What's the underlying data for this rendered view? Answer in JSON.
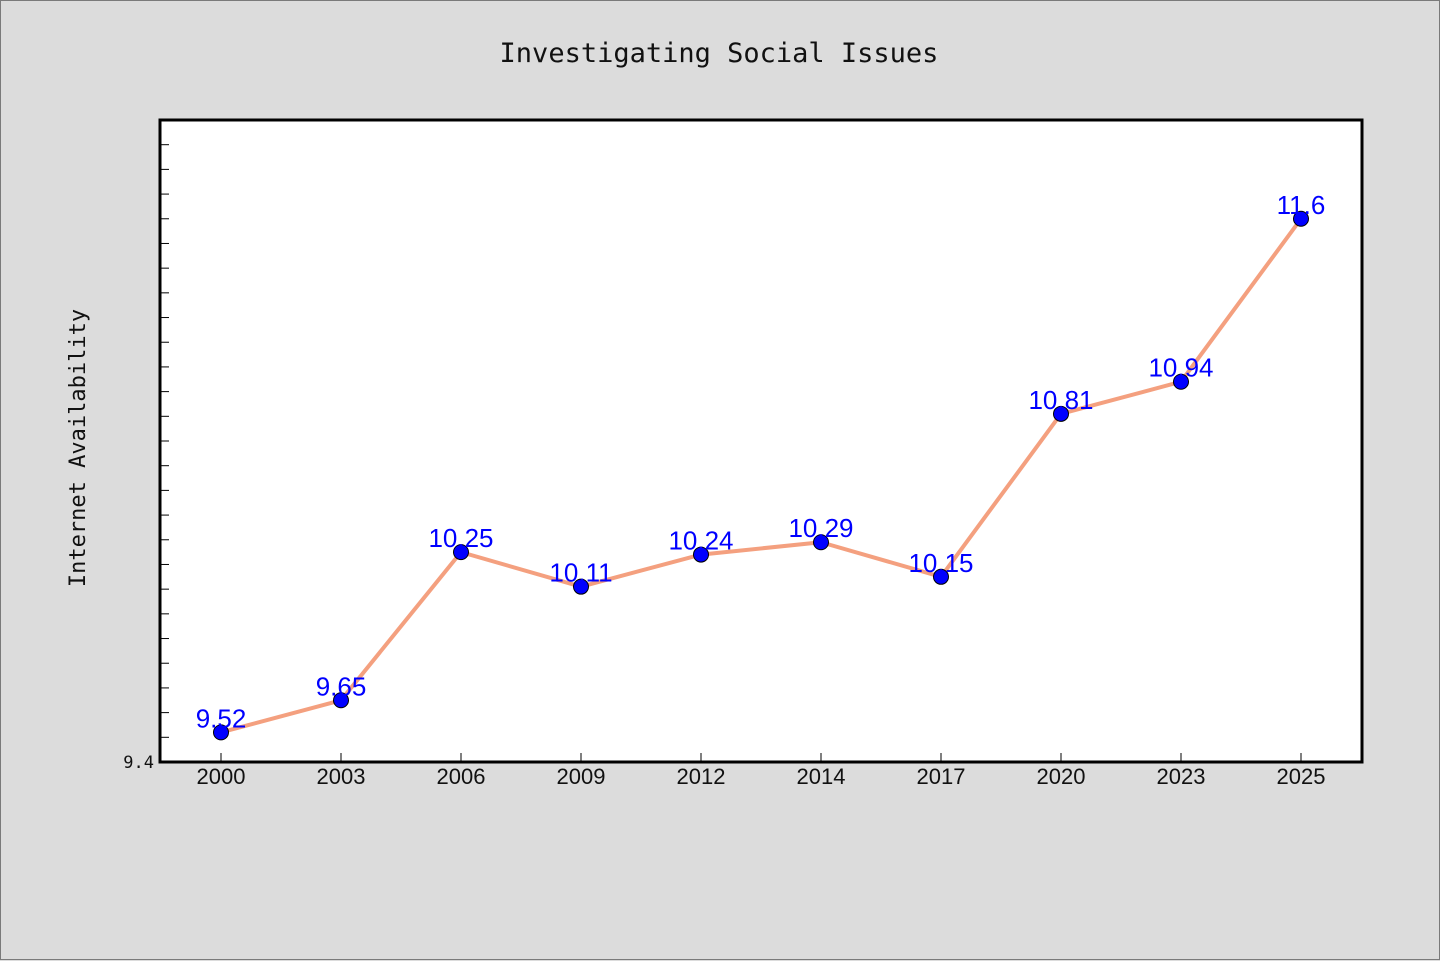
{
  "chart_data": {
    "type": "line",
    "title": "Investigating Social Issues",
    "xlabel": "",
    "ylabel": "Internet Availability",
    "categories": [
      "2000",
      "2003",
      "2006",
      "2009",
      "2012",
      "2014",
      "2017",
      "2020",
      "2023",
      "2025"
    ],
    "values": [
      9.52,
      9.65,
      10.25,
      10.11,
      10.24,
      10.29,
      10.15,
      10.81,
      10.94,
      11.6
    ],
    "data_labels": [
      "9.52",
      "9.65",
      "10.25",
      "10.11",
      "10.24",
      "10.29",
      "10.15",
      "10.81",
      "10.94",
      "11.6"
    ],
    "ylim": [
      9.4,
      12.0
    ],
    "yticks_labeled": [
      "9.4"
    ],
    "grid": false,
    "colors": {
      "line": "#f4a07f",
      "marker": "#0000ff",
      "label": "#0000ff",
      "plot_bg": "#ffffff",
      "figure_bg": "#dcdcdc"
    }
  }
}
